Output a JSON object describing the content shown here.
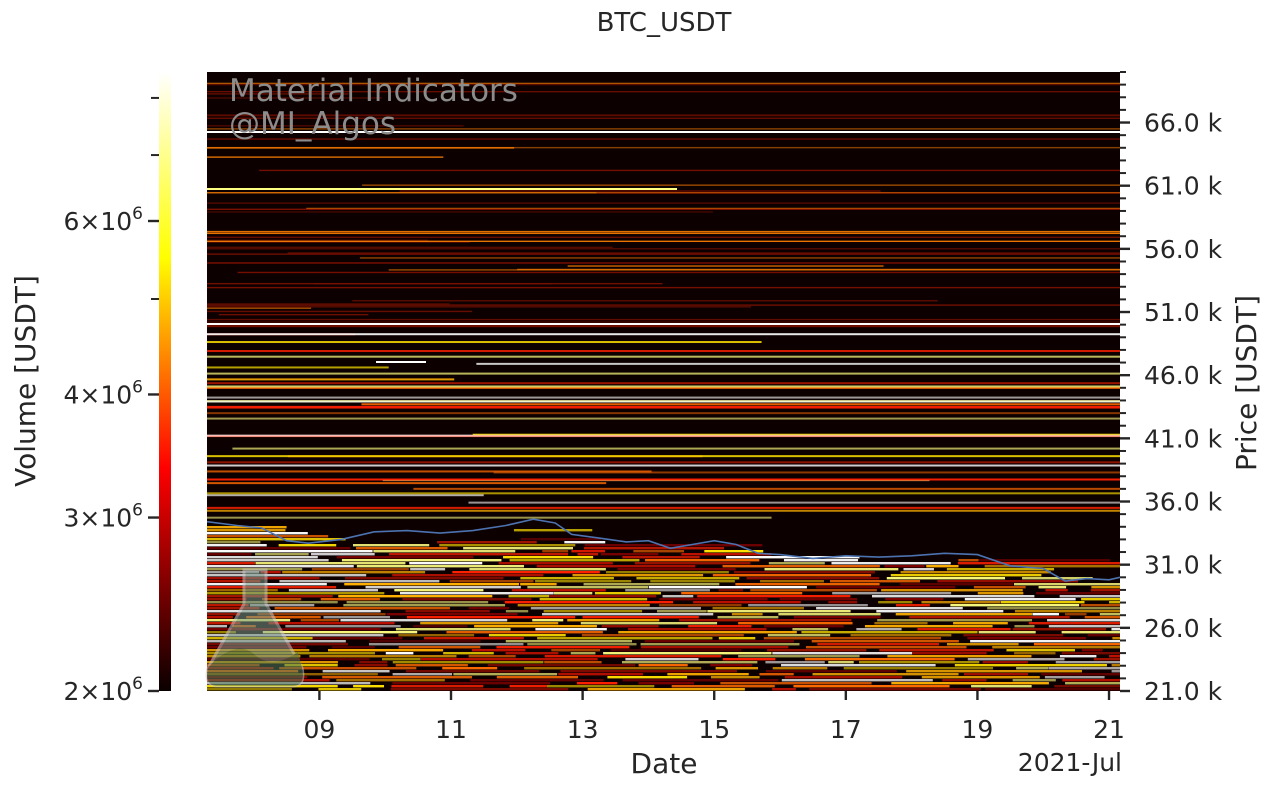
{
  "chart_data": {
    "type": "heatmap",
    "title": "BTC_USDT",
    "xlabel": "Date",
    "x_offset_label": "2021-Jul",
    "ylabel_right": "Price [USDT]",
    "colorbar_label": "Volume [USDT]",
    "x_range": [
      "2021-07-07T07:00",
      "2021-07-21T04:00"
    ],
    "x_ticks": [
      {
        "date": "2021-07-09",
        "label": "09"
      },
      {
        "date": "2021-07-11",
        "label": "11"
      },
      {
        "date": "2021-07-13",
        "label": "13"
      },
      {
        "date": "2021-07-15",
        "label": "15"
      },
      {
        "date": "2021-07-17",
        "label": "17"
      },
      {
        "date": "2021-07-19",
        "label": "19"
      },
      {
        "date": "2021-07-21",
        "label": "21"
      }
    ],
    "price_range": [
      21000,
      70000
    ],
    "price_ticks": [
      {
        "value": 21000,
        "label": "21.0 k"
      },
      {
        "value": 26000,
        "label": "26.0 k"
      },
      {
        "value": 31000,
        "label": "31.0 k"
      },
      {
        "value": 36000,
        "label": "36.0 k"
      },
      {
        "value": 41000,
        "label": "41.0 k"
      },
      {
        "value": 46000,
        "label": "46.0 k"
      },
      {
        "value": 51000,
        "label": "51.0 k"
      },
      {
        "value": 56000,
        "label": "56.0 k"
      },
      {
        "value": 61000,
        "label": "61.0 k"
      },
      {
        "value": 66000,
        "label": "66.0 k"
      }
    ],
    "colorbar": {
      "scale": "log",
      "range": [
        2000000,
        8500000
      ],
      "colormap": "hot",
      "major_ticks": [
        {
          "value": 2000000,
          "mant": "2",
          "exp": "6"
        },
        {
          "value": 3000000,
          "mant": "3",
          "exp": "6"
        },
        {
          "value": 4000000,
          "mant": "4",
          "exp": "6"
        },
        {
          "value": 6000000,
          "mant": "6",
          "exp": "6"
        }
      ],
      "minor_ticks": [
        5000000,
        7000000,
        8000000
      ]
    },
    "price_series": {
      "name": "",
      "color": "#4c72b0",
      "points": [
        [
          "2021-07-07T07:00",
          34400
        ],
        [
          "2021-07-07T18:00",
          34100
        ],
        [
          "2021-07-08T03:00",
          33900
        ],
        [
          "2021-07-08T12:00",
          32900
        ],
        [
          "2021-07-08T20:00",
          32700
        ],
        [
          "2021-07-09T08:00",
          33000
        ],
        [
          "2021-07-09T20:00",
          33600
        ],
        [
          "2021-07-10T08:00",
          33700
        ],
        [
          "2021-07-10T20:00",
          33500
        ],
        [
          "2021-07-11T08:00",
          33700
        ],
        [
          "2021-07-11T20:00",
          34100
        ],
        [
          "2021-07-12T06:00",
          34600
        ],
        [
          "2021-07-12T14:00",
          34300
        ],
        [
          "2021-07-12T20:00",
          33400
        ],
        [
          "2021-07-13T06:00",
          33100
        ],
        [
          "2021-07-13T16:00",
          32800
        ],
        [
          "2021-07-14T00:00",
          32900
        ],
        [
          "2021-07-14T08:00",
          32300
        ],
        [
          "2021-07-14T16:00",
          32600
        ],
        [
          "2021-07-15T00:00",
          32900
        ],
        [
          "2021-07-15T08:00",
          32600
        ],
        [
          "2021-07-15T16:00",
          31900
        ],
        [
          "2021-07-16T00:00",
          31800
        ],
        [
          "2021-07-16T12:00",
          31500
        ],
        [
          "2021-07-17T00:00",
          31700
        ],
        [
          "2021-07-17T12:00",
          31600
        ],
        [
          "2021-07-18T00:00",
          31700
        ],
        [
          "2021-07-18T12:00",
          31900
        ],
        [
          "2021-07-19T00:00",
          31800
        ],
        [
          "2021-07-19T12:00",
          30900
        ],
        [
          "2021-07-20T00:00",
          30700
        ],
        [
          "2021-07-20T08:00",
          29700
        ],
        [
          "2021-07-20T16:00",
          29900
        ],
        [
          "2021-07-21T00:00",
          29800
        ],
        [
          "2021-07-21T04:00",
          30000
        ]
      ]
    },
    "grid": false
  },
  "watermark": {
    "line1": "Material Indicators",
    "line2": "@MI_Algos",
    "logo": "flask-icon"
  }
}
